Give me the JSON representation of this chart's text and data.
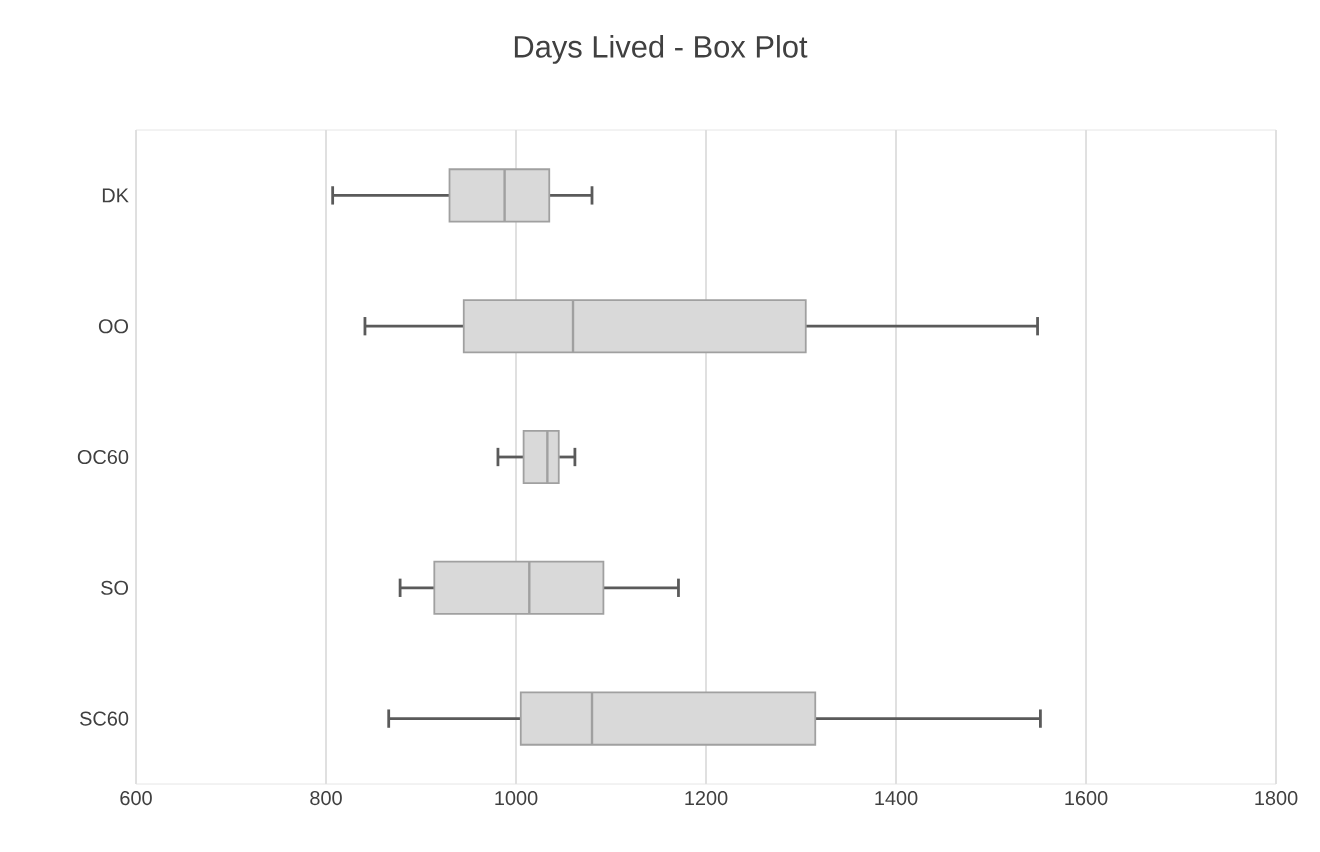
{
  "chart_data": {
    "type": "box",
    "title": "Days Lived - Box Plot",
    "orientation": "horizontal",
    "color": "#d9d9d9",
    "categories": [
      "DK",
      "OO",
      "OC60",
      "SO",
      "SC60"
    ],
    "boxes": [
      {
        "low": 807,
        "q1": 930,
        "median": 988,
        "q3": 1035,
        "high": 1080
      },
      {
        "low": 841,
        "q1": 945,
        "median": 1060,
        "q3": 1305,
        "high": 1549
      },
      {
        "low": 981,
        "q1": 1008,
        "median": 1033,
        "q3": 1045,
        "high": 1062
      },
      {
        "low": 878,
        "q1": 914,
        "median": 1014,
        "q3": 1092,
        "high": 1171
      },
      {
        "low": 866,
        "q1": 1005,
        "median": 1080,
        "q3": 1315,
        "high": 1552
      }
    ],
    "xlim": [
      600,
      1800
    ],
    "xticks": [
      600,
      800,
      1000,
      1200,
      1400,
      1600,
      1800
    ],
    "grid": "x"
  }
}
